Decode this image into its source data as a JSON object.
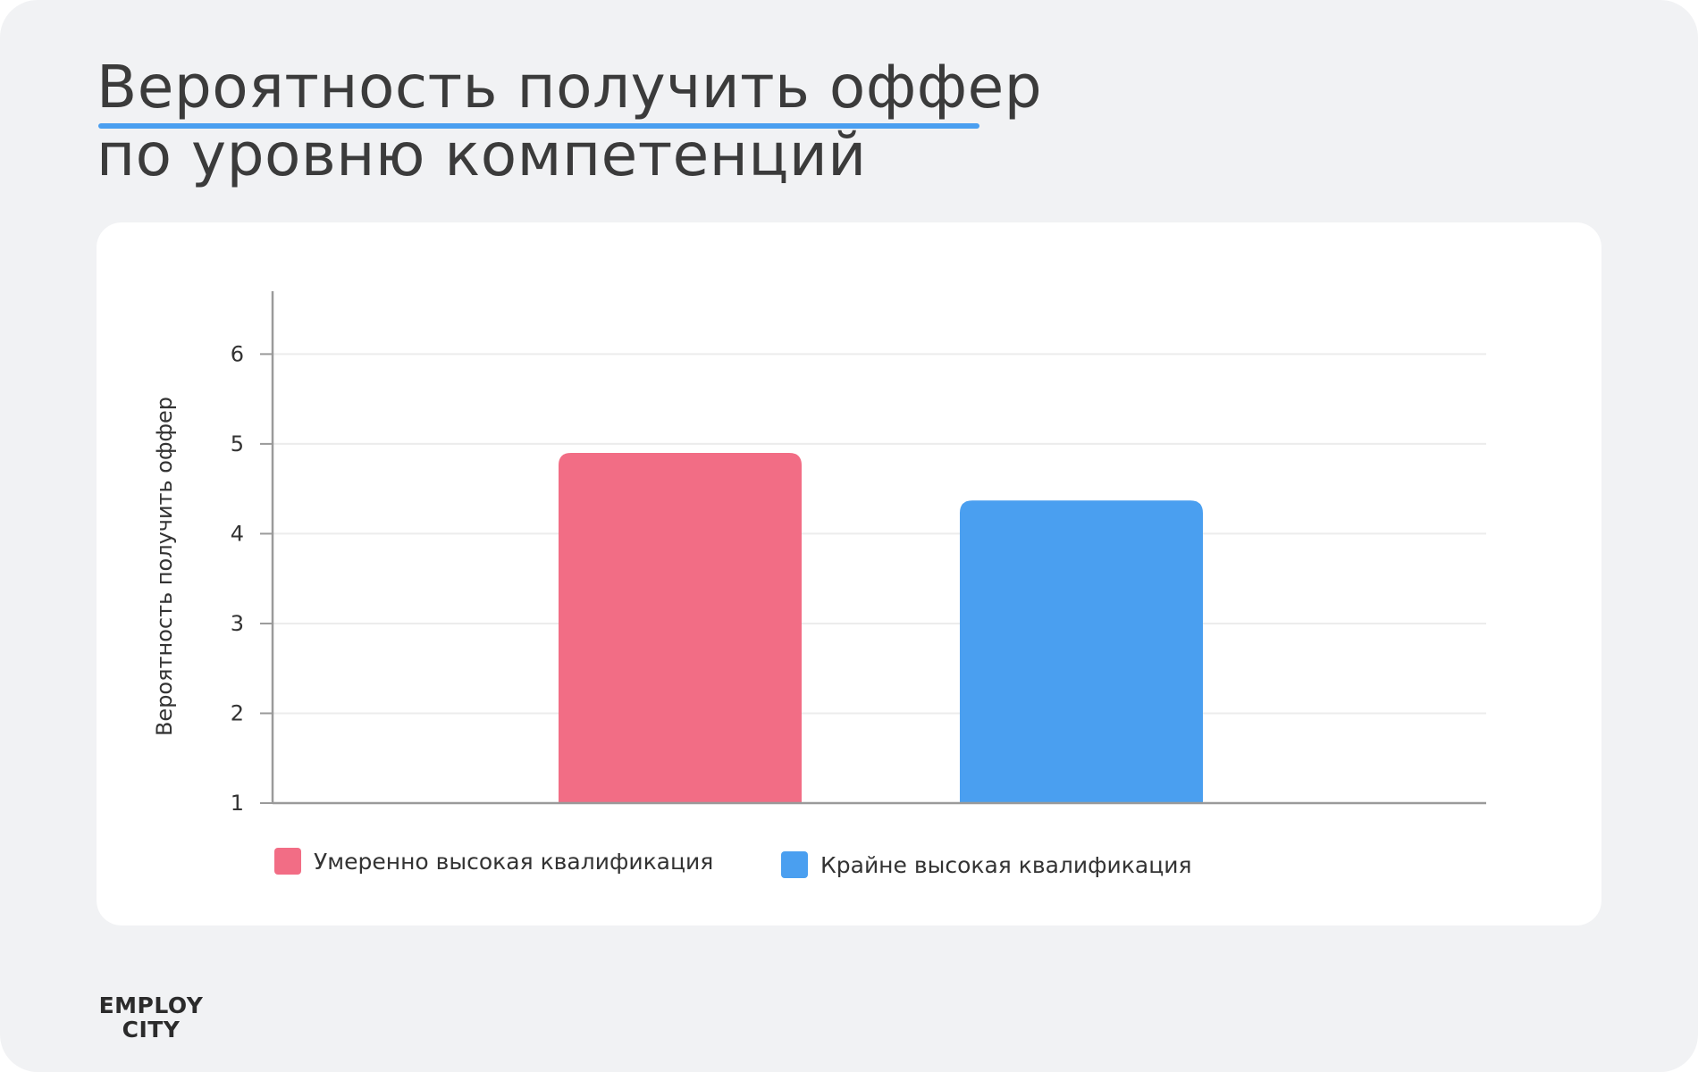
{
  "header": {
    "title_line1": "Вероятность получить оффер",
    "title_line2": "по уровню компетенций"
  },
  "logo": {
    "line1": "EMPLOY",
    "line2": "CITY"
  },
  "colors": {
    "background": "#f1f2f4",
    "accent": "#4a9ff0",
    "series1": "#f26d85",
    "series2": "#4a9ff0"
  },
  "chart_data": {
    "type": "bar",
    "title": "",
    "xlabel": "",
    "ylabel": "Вероятность получить оффер",
    "ylim": [
      1,
      6.7
    ],
    "yticks": [
      1,
      2,
      3,
      4,
      5,
      6
    ],
    "grid": true,
    "legend_position": "bottom-left",
    "series": [
      {
        "name": "Умеренно высокая квалификация",
        "value": 4.9,
        "color": "#f26d85"
      },
      {
        "name": "Крайне высокая квалификация",
        "value": 4.37,
        "color": "#4a9ff0"
      }
    ]
  }
}
